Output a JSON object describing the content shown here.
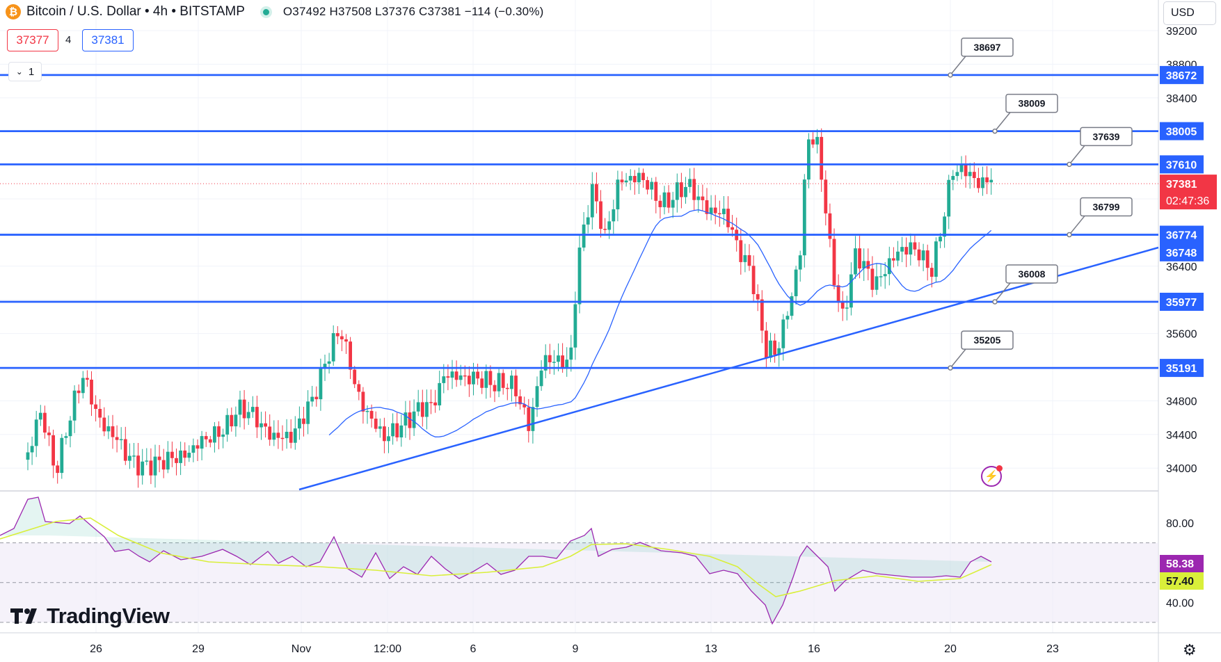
{
  "header": {
    "coin_icon": "bitcoin-icon",
    "symbol_title": "Bitcoin / U.S. Dollar • 4h • BITSTAMP",
    "ohlc": "O37492  H37508  L37376  C37381  −114 (−0.30%)"
  },
  "quote": {
    "sell": "37377",
    "spread": "4",
    "buy": "37381"
  },
  "indicator_toggle": {
    "count": "1",
    "icon": "chevron-down-icon"
  },
  "currency": "USD",
  "branding": "TradingView",
  "colors": {
    "up": "#22ab94",
    "down": "#f23645",
    "line": "#2962ff",
    "rsi": "#9c27b0",
    "rsi_ma": "#d9ef3a"
  },
  "price_axis": {
    "ticks": [
      39200,
      38800,
      38400,
      36400,
      35600,
      34800,
      34400,
      34000
    ]
  },
  "rsi_axis": {
    "ticks": [
      "80.00",
      "40.00"
    ]
  },
  "time_axis": {
    "labels": [
      "26",
      "29",
      "Nov",
      "12:00",
      "6",
      "9",
      "13",
      "16",
      "20",
      "23"
    ]
  },
  "levels": [
    {
      "price": 38672,
      "callout": "38697"
    },
    {
      "price": 38005,
      "callout": "38009"
    },
    {
      "price": 37610,
      "callout": "37639"
    },
    {
      "price": 36774,
      "callout": "36799"
    },
    {
      "price": 35977,
      "callout": "36008"
    },
    {
      "price": 35191,
      "callout": "35205"
    }
  ],
  "price_badges": [
    {
      "text": "38672",
      "price": 38672
    },
    {
      "text": "38005",
      "price": 38005
    },
    {
      "text": "37610",
      "price": 37610
    },
    {
      "text": "36774",
      "price": 36774
    },
    {
      "text": "36748",
      "price": 36565
    },
    {
      "text": "35977",
      "price": 35977
    },
    {
      "text": "35191",
      "price": 35191
    }
  ],
  "current_price": {
    "price": "37381",
    "countdown": "02:47:36"
  },
  "rsi": {
    "value": "58.38",
    "ma_value": "57.40"
  }
}
